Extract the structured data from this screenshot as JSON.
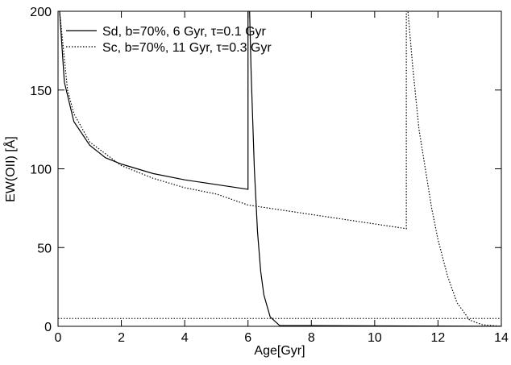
{
  "chart_data": {
    "type": "line",
    "xlabel": "Age[Gyr]",
    "ylabel": "EW(OII) [Å]",
    "xlim": [
      0,
      14
    ],
    "xticks": [
      0,
      2,
      4,
      6,
      8,
      10,
      12,
      14
    ],
    "ylim": [
      0,
      200
    ],
    "yticks": [
      0,
      50,
      100,
      150,
      200
    ],
    "legend": "upper left",
    "reference_line": 5,
    "series": [
      {
        "name": "Sd, b=70%, 6 Gyr, τ=0.1 Gyr",
        "color": "#000000",
        "style": "solid",
        "x": [
          0.05,
          0.2,
          0.5,
          1,
          1.5,
          2,
          3,
          4,
          5,
          6,
          6,
          6.05,
          6.1,
          6.2,
          6.3,
          6.4,
          6.5,
          6.7,
          7.0,
          14
        ],
        "values": [
          200,
          155,
          130,
          115,
          107,
          103,
          97,
          93,
          90,
          87,
          200,
          200,
          160,
          100,
          60,
          35,
          20,
          6,
          0.5,
          0
        ]
      },
      {
        "name": "Sc, b=70%, 11 Gyr, τ=0.3 Gyr",
        "color": "#000000",
        "style": "dotted",
        "x": [
          0.05,
          0.3,
          0.5,
          1,
          2,
          3,
          4,
          5,
          6,
          8,
          10,
          11,
          11,
          11.05,
          11.2,
          11.4,
          11.6,
          11.8,
          12,
          12.3,
          12.6,
          13,
          13.4,
          14
        ],
        "values": [
          200,
          150,
          135,
          117,
          102,
          94,
          88,
          84,
          77,
          71,
          65,
          62,
          200,
          200,
          165,
          125,
          100,
          75,
          55,
          32,
          15,
          4,
          1,
          0
        ]
      }
    ]
  }
}
